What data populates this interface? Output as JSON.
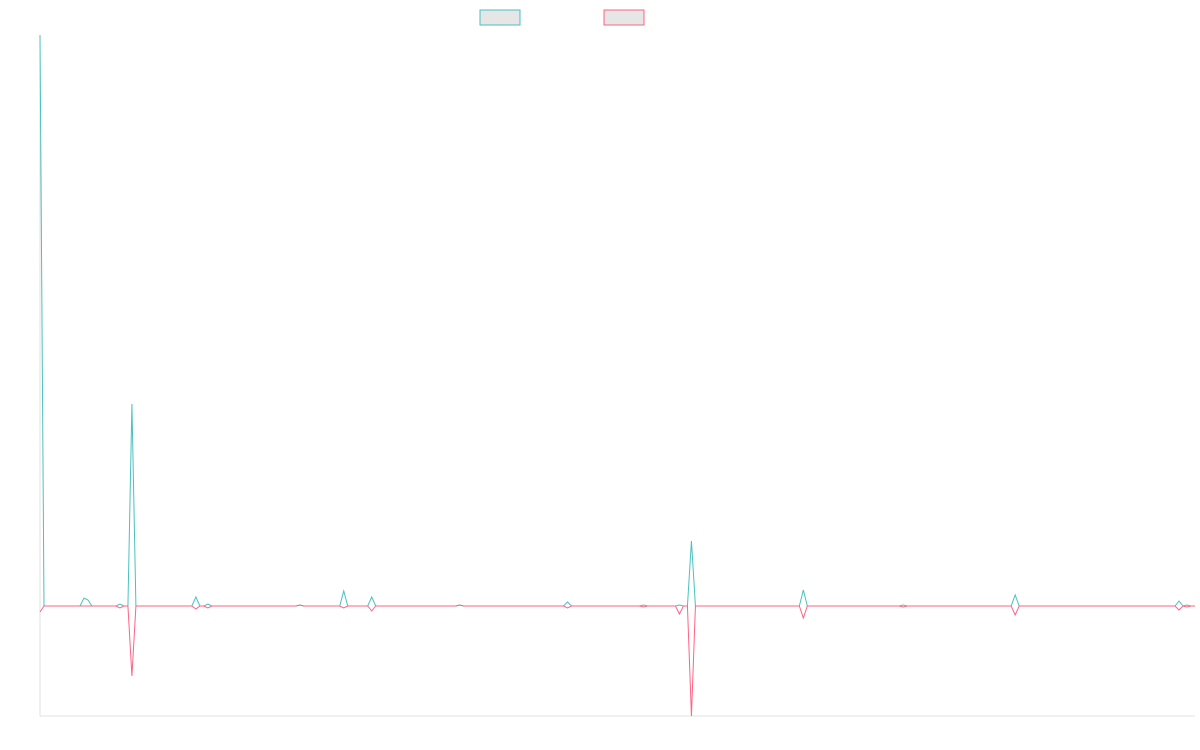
{
  "chart_data": {
    "type": "line",
    "x": [
      0,
      1,
      10,
      11,
      12,
      13,
      19,
      20,
      21,
      22,
      23,
      24,
      38,
      39,
      40,
      41,
      42,
      43,
      64,
      65,
      66,
      75,
      76,
      77,
      82,
      83,
      84,
      104,
      105,
      106,
      131,
      132,
      133,
      150,
      151,
      152,
      159,
      160,
      161,
      162,
      163,
      164,
      190,
      191,
      192,
      215,
      216,
      217,
      243,
      244,
      245,
      284,
      285,
      286,
      287,
      288,
      289
    ],
    "xlim": [
      0,
      289
    ],
    "ylim": [
      -110,
      571
    ],
    "series": [
      {
        "color": "#4bc0c0",
        "values": [
          571,
          0,
          0,
          8,
          6,
          0,
          0,
          2,
          0,
          0,
          202,
          0,
          0,
          9,
          0,
          0,
          2,
          0,
          0,
          1,
          0,
          0,
          15,
          0,
          0,
          9,
          0,
          0,
          1,
          0,
          0,
          4,
          0,
          0,
          1,
          0,
          0,
          1,
          0,
          0,
          65,
          0,
          0,
          16,
          0,
          0,
          1,
          0,
          0,
          11,
          0,
          0,
          5,
          0,
          1,
          0,
          0
        ]
      },
      {
        "color": "#ff6384",
        "values": [
          -6,
          0,
          0,
          0,
          0,
          0,
          0,
          -2,
          0,
          0,
          -70,
          0,
          0,
          -3,
          0,
          0,
          -2,
          0,
          0,
          1,
          0,
          0,
          -2,
          0,
          0,
          -5,
          0,
          0,
          1,
          0,
          0,
          -2,
          0,
          0,
          -1,
          0,
          0,
          -8,
          0,
          0,
          -110,
          0,
          0,
          -12,
          0,
          0,
          -1,
          0,
          0,
          -9,
          0,
          0,
          -4,
          0,
          -1,
          0,
          0
        ]
      }
    ]
  }
}
